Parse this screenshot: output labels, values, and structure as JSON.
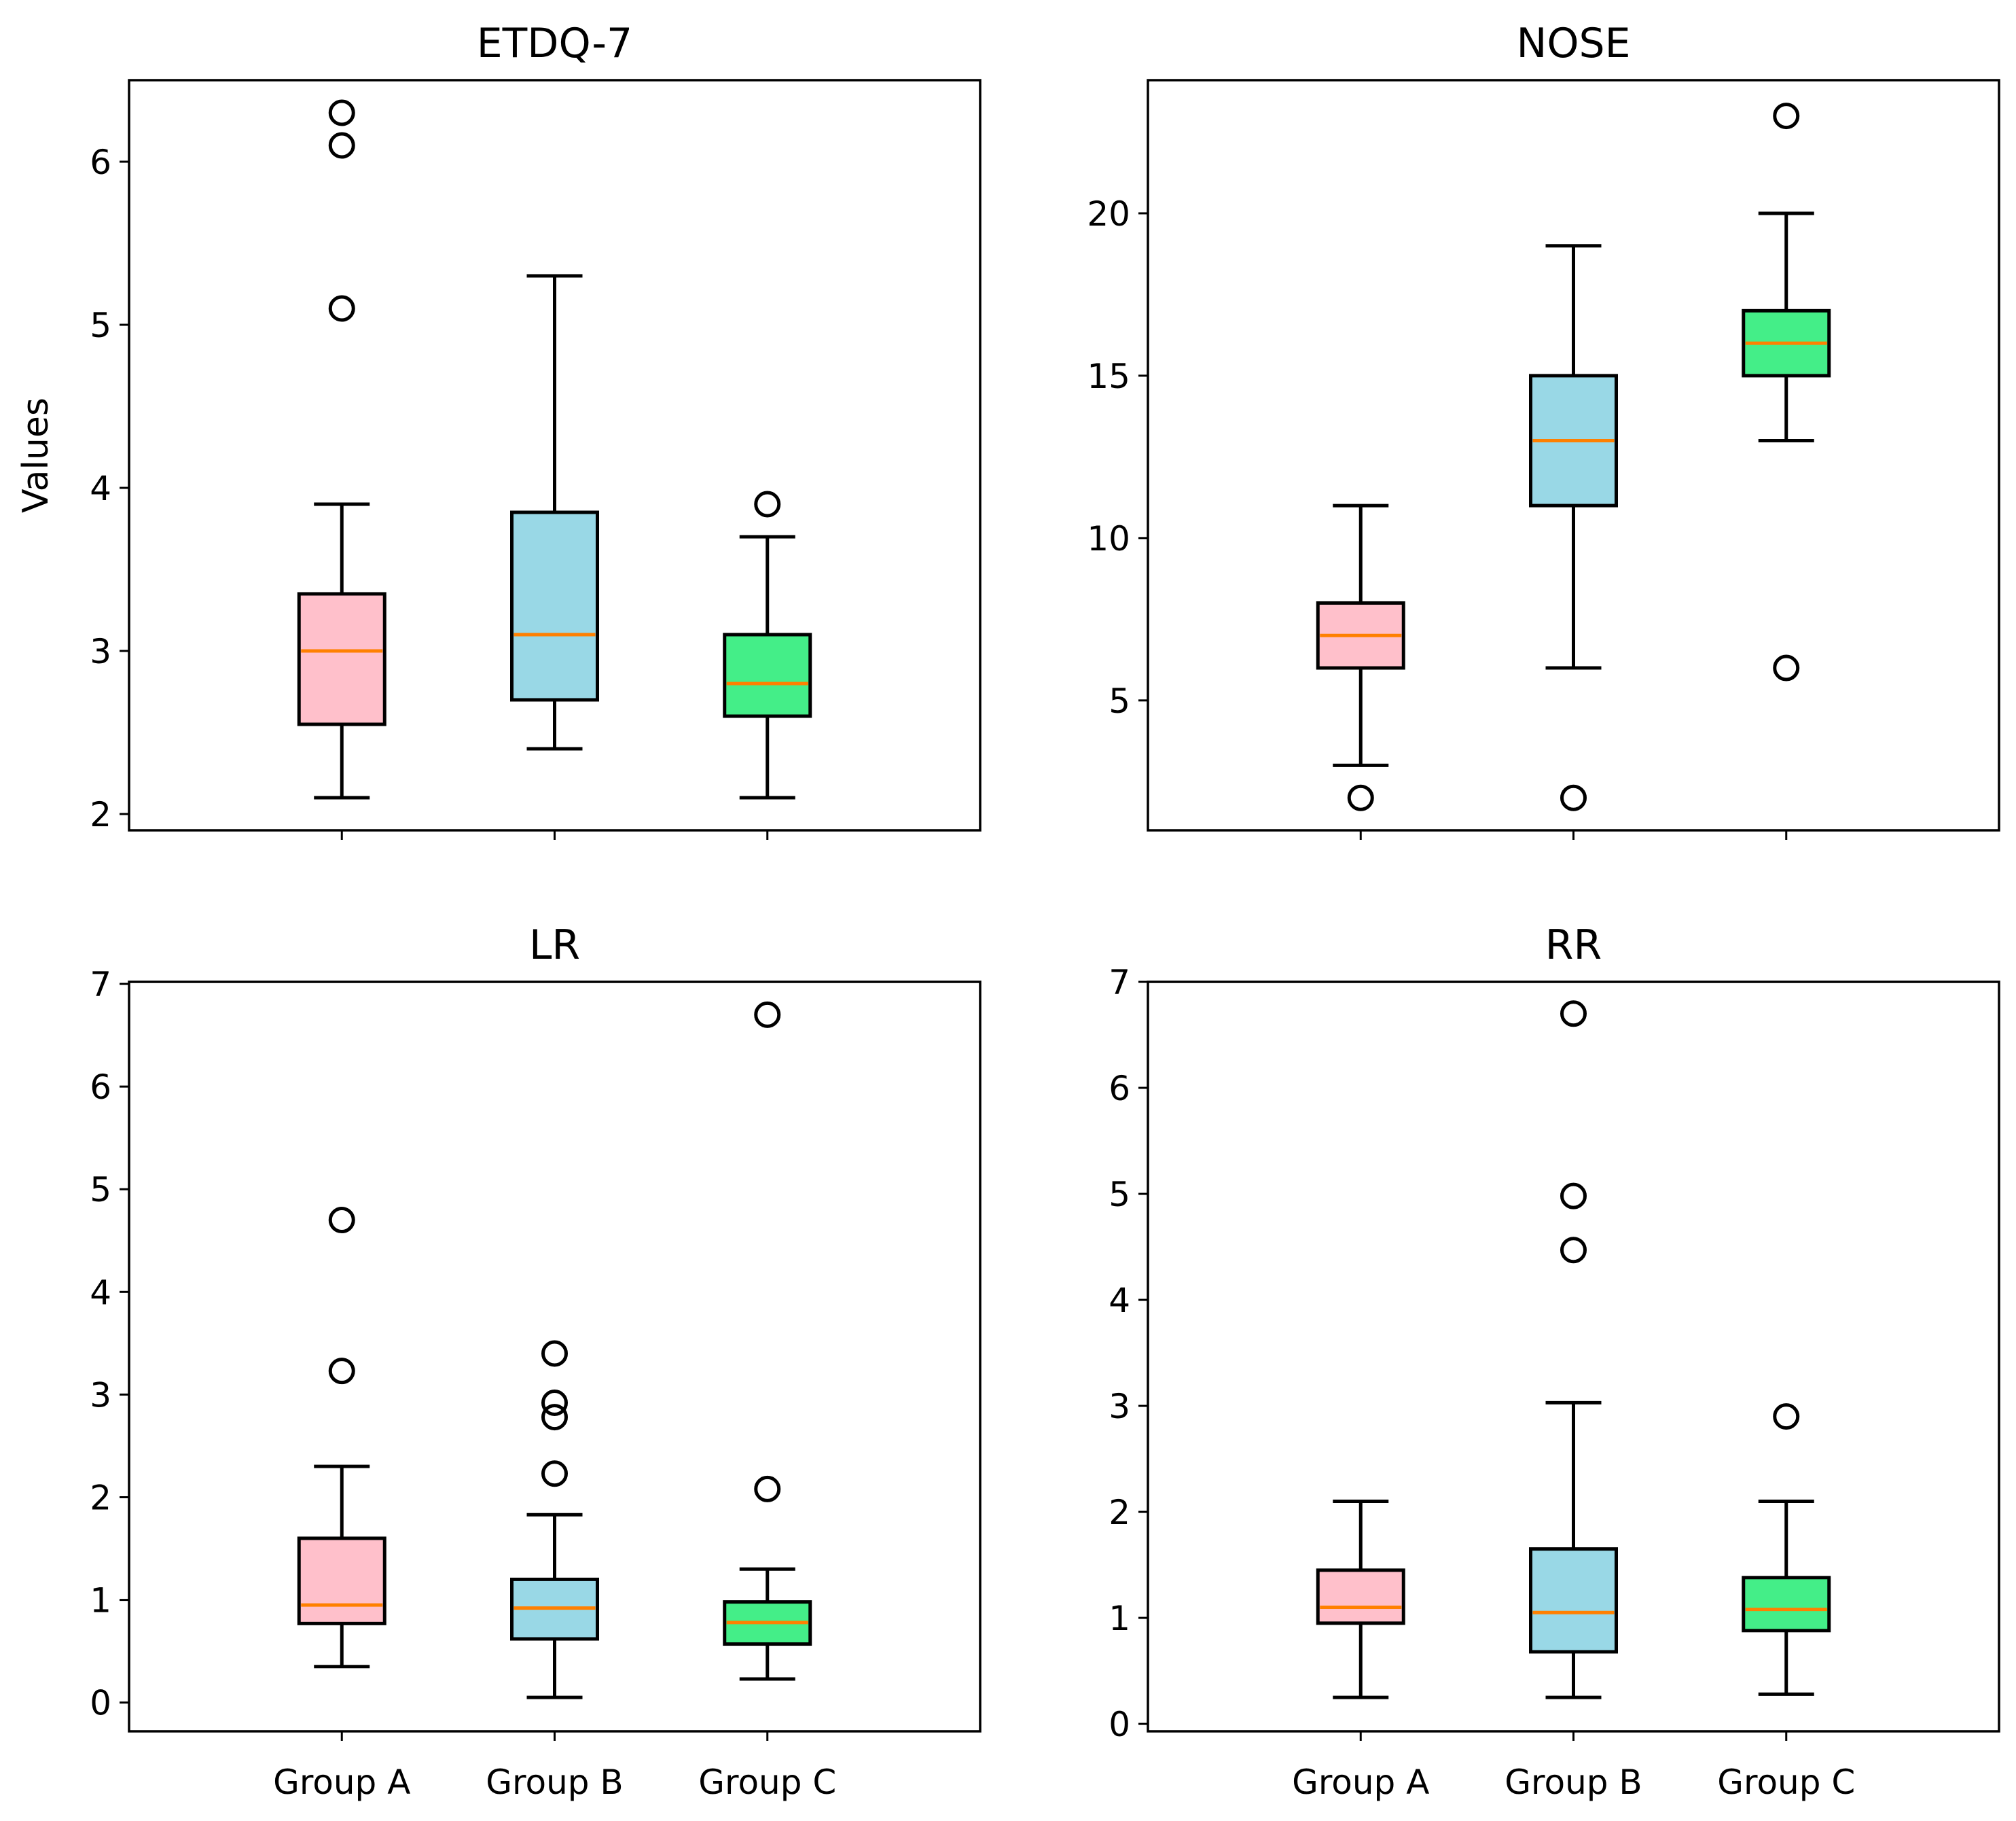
{
  "chart_data": {
    "type": "boxplot",
    "layout": "2x2",
    "ylabel": "Values",
    "categories": [
      "Group A",
      "Group B",
      "Group C"
    ],
    "colors": {
      "Group A": "#ffc0cb",
      "Group B": "#99d8e6",
      "Group C": "#44ee88",
      "median": "#ff8000",
      "edge": "#000000"
    },
    "panels": [
      {
        "title": "ETDQ-7",
        "ylim": [
          1.9,
          6.5
        ],
        "yticks": [
          2,
          3,
          4,
          5,
          6
        ],
        "show_xticklabels": false,
        "show_ylabel": true,
        "boxes": [
          {
            "group": "Group A",
            "whislo": 2.1,
            "q1": 2.55,
            "med": 3.0,
            "q3": 3.35,
            "whishi": 3.9,
            "fliers": [
              5.1,
              6.1,
              6.3
            ]
          },
          {
            "group": "Group B",
            "whislo": 2.4,
            "q1": 2.7,
            "med": 3.1,
            "q3": 3.85,
            "whishi": 5.3,
            "fliers": []
          },
          {
            "group": "Group C",
            "whislo": 2.1,
            "q1": 2.6,
            "med": 2.8,
            "q3": 3.1,
            "whishi": 3.7,
            "fliers": [
              3.9
            ]
          }
        ]
      },
      {
        "title": "NOSE",
        "ylim": [
          1.0,
          24.1
        ],
        "yticks": [
          5,
          10,
          15,
          20
        ],
        "show_xticklabels": false,
        "show_ylabel": false,
        "boxes": [
          {
            "group": "Group A",
            "whislo": 3,
            "q1": 6,
            "med": 7,
            "q3": 8,
            "whishi": 11,
            "fliers": [
              2
            ]
          },
          {
            "group": "Group B",
            "whislo": 6,
            "q1": 11,
            "med": 13,
            "q3": 15,
            "whishi": 19,
            "fliers": [
              2
            ]
          },
          {
            "group": "Group C",
            "whislo": 13,
            "q1": 15,
            "med": 16,
            "q3": 17,
            "whishi": 20,
            "fliers": [
              6,
              23
            ]
          }
        ]
      },
      {
        "title": "LR",
        "ylim": [
          -0.28,
          7.02
        ],
        "yticks": [
          0,
          1,
          2,
          3,
          4,
          5,
          6,
          7
        ],
        "show_xticklabels": true,
        "show_ylabel": false,
        "boxes": [
          {
            "group": "Group A",
            "whislo": 0.35,
            "q1": 0.77,
            "med": 0.95,
            "q3": 1.6,
            "whishi": 2.3,
            "fliers": [
              3.23,
              4.7
            ]
          },
          {
            "group": "Group B",
            "whislo": 0.05,
            "q1": 0.62,
            "med": 0.92,
            "q3": 1.2,
            "whishi": 1.83,
            "fliers": [
              2.23,
              2.78,
              2.92,
              3.4
            ]
          },
          {
            "group": "Group C",
            "whislo": 0.23,
            "q1": 0.57,
            "med": 0.78,
            "q3": 0.98,
            "whishi": 1.3,
            "fliers": [
              2.08,
              6.7
            ]
          }
        ]
      },
      {
        "title": "RR",
        "ylim": [
          -0.07,
          7.0
        ],
        "yticks": [
          0,
          1,
          2,
          3,
          4,
          5,
          6,
          7
        ],
        "show_xticklabels": true,
        "show_ylabel": false,
        "boxes": [
          {
            "group": "Group A",
            "whislo": 0.25,
            "q1": 0.95,
            "med": 1.1,
            "q3": 1.45,
            "whishi": 2.1,
            "fliers": []
          },
          {
            "group": "Group B",
            "whislo": 0.25,
            "q1": 0.68,
            "med": 1.05,
            "q3": 1.65,
            "whishi": 3.03,
            "fliers": [
              4.47,
              4.98,
              6.7
            ]
          },
          {
            "group": "Group C",
            "whislo": 0.28,
            "q1": 0.88,
            "med": 1.08,
            "q3": 1.38,
            "whishi": 2.1,
            "fliers": [
              2.9
            ]
          }
        ]
      }
    ]
  }
}
